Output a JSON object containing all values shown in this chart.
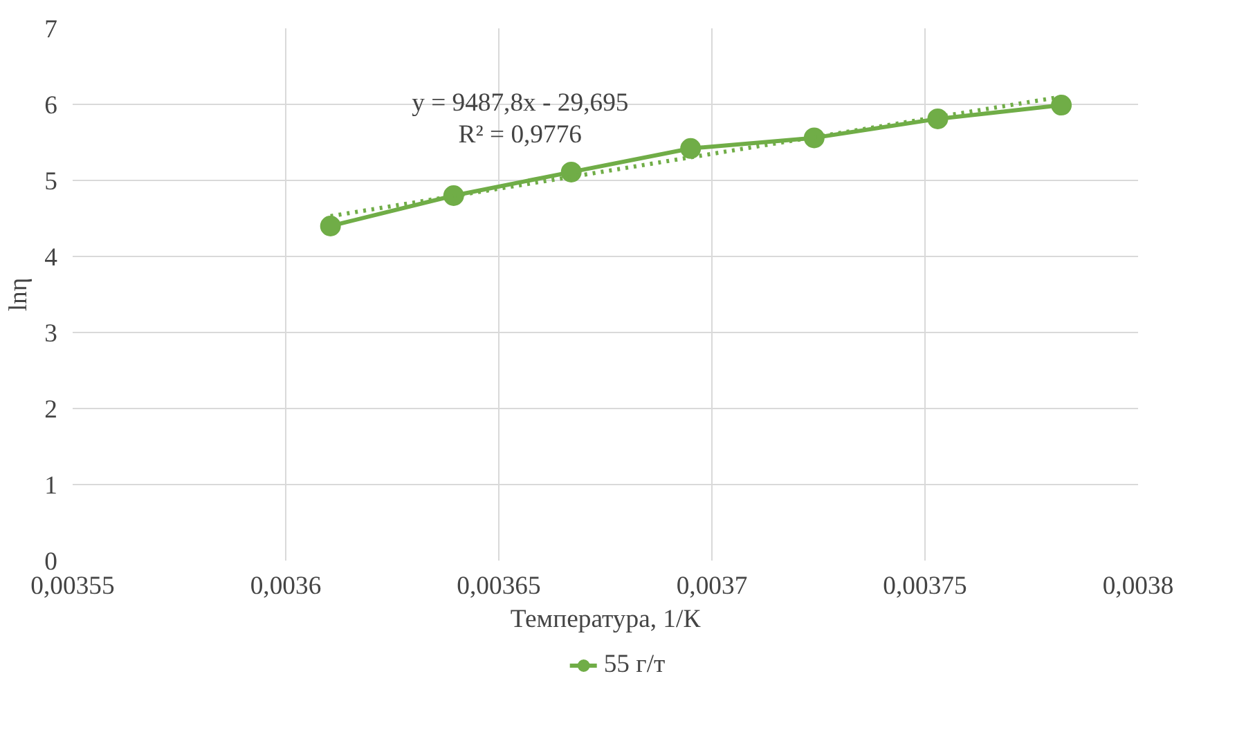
{
  "chart_data": {
    "type": "line",
    "xlabel": "Температура, 1/К",
    "ylabel": "lnη",
    "xlim": [
      0.00355,
      0.0038
    ],
    "ylim": [
      0,
      7
    ],
    "xticks": [
      {
        "value": 0.00355,
        "label": "0,00355"
      },
      {
        "value": 0.0036,
        "label": "0,0036"
      },
      {
        "value": 0.00365,
        "label": "0,00365"
      },
      {
        "value": 0.0037,
        "label": "0,0037"
      },
      {
        "value": 0.00375,
        "label": "0,00375"
      },
      {
        "value": 0.0038,
        "label": "0,0038"
      }
    ],
    "yticks": [
      0,
      1,
      2,
      3,
      4,
      5,
      6,
      7
    ],
    "grid": true,
    "legend": "bottom",
    "marker": "circle",
    "series": [
      {
        "name": "55 г/т",
        "color": "#70ad47",
        "x": [
          0.0036105,
          0.0036394,
          0.003667,
          0.003695,
          0.003724,
          0.003753,
          0.003782
        ],
        "values": [
          4.4,
          4.8,
          5.11,
          5.42,
          5.56,
          5.81,
          5.99
        ]
      },
      {
        "type": "line",
        "color": "#70ad47",
        "line_style": "dotted",
        "marker": "none",
        "x": [
          0.0036105,
          0.003782
        ],
        "values": [
          4.53,
          6.1
        ]
      }
    ],
    "annotations": [
      "y = 9487,8x - 29,695",
      "R² = 0,9776"
    ]
  }
}
